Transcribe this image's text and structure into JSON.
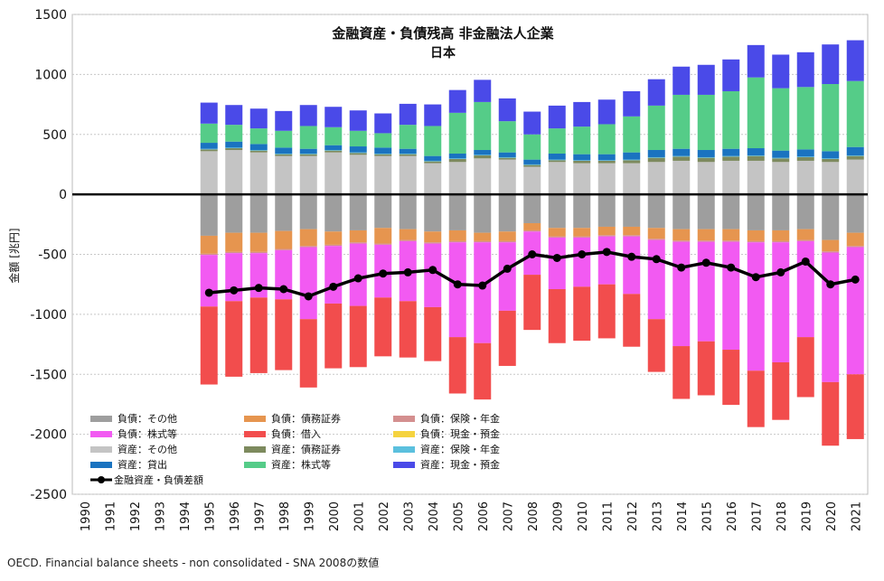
{
  "chart_data": {
    "type": "bar",
    "title": "金融資産・負債残高 非金融法人企業",
    "subtitle": "日本",
    "ylabel": "金額 [兆円]",
    "xlabel": "",
    "ylim": [
      -2500,
      1500
    ],
    "yticks": [
      1500,
      1000,
      500,
      0,
      -500,
      -1000,
      -1500,
      -2000,
      -2500
    ],
    "grid": true,
    "legend_position": "bottom-left",
    "categories": [
      "1990",
      "1991",
      "1992",
      "1993",
      "1994",
      "1995",
      "1996",
      "1997",
      "1998",
      "1999",
      "2000",
      "2001",
      "2002",
      "2003",
      "2004",
      "2005",
      "2006",
      "2007",
      "2008",
      "2009",
      "2010",
      "2011",
      "2012",
      "2013",
      "2014",
      "2015",
      "2016",
      "2017",
      "2018",
      "2019",
      "2020",
      "2021"
    ],
    "series": [
      {
        "name": "負債：その他",
        "color": "#9e9e9e",
        "stack": "liability",
        "values": [
          null,
          null,
          null,
          null,
          null,
          -345,
          -320,
          -320,
          -305,
          -290,
          -310,
          -300,
          -280,
          -290,
          -310,
          -300,
          -320,
          -310,
          -240,
          -280,
          -280,
          -270,
          -270,
          -280,
          -290,
          -290,
          -290,
          -300,
          -300,
          -290,
          -380,
          -320
        ]
      },
      {
        "name": "負債：債務証券",
        "color": "#e6954f",
        "stack": "liability",
        "values": [
          null,
          null,
          null,
          null,
          null,
          -150,
          -160,
          -160,
          -150,
          -140,
          -110,
          -100,
          -130,
          -90,
          -90,
          -90,
          -70,
          -80,
          -60,
          -70,
          -70,
          -70,
          -70,
          -90,
          -95,
          -95,
          -95,
          -90,
          -90,
          -90,
          -95,
          -110
        ]
      },
      {
        "name": "負債：保険・年金",
        "color": "#d48f8f",
        "stack": "liability",
        "values": [
          null,
          null,
          null,
          null,
          null,
          -10,
          -10,
          -10,
          -10,
          -10,
          -10,
          -10,
          -10,
          -10,
          -10,
          -10,
          -10,
          -10,
          -10,
          -10,
          -10,
          -10,
          -10,
          -10,
          -10,
          -10,
          -10,
          -10,
          -10,
          -10,
          -10,
          -10
        ]
      },
      {
        "name": "負債：株式等",
        "color": "#f25af2",
        "stack": "liability",
        "values": [
          null,
          null,
          null,
          null,
          null,
          -430,
          -400,
          -370,
          -410,
          -600,
          -480,
          -520,
          -440,
          -500,
          -530,
          -790,
          -840,
          -570,
          -360,
          -430,
          -410,
          -400,
          -480,
          -660,
          -870,
          -830,
          -900,
          -1070,
          -1000,
          -800,
          -1080,
          -1060
        ]
      },
      {
        "name": "負債：借入",
        "color": "#f24d4d",
        "stack": "liability",
        "values": [
          null,
          null,
          null,
          null,
          null,
          -650,
          -630,
          -630,
          -590,
          -570,
          -540,
          -510,
          -490,
          -470,
          -450,
          -470,
          -470,
          -460,
          -460,
          -450,
          -450,
          -450,
          -440,
          -440,
          -440,
          -450,
          -460,
          -470,
          -480,
          -500,
          -530,
          -540
        ]
      },
      {
        "name": "負債：現金・預金",
        "color": "#f5d33f",
        "stack": "liability",
        "values": [
          null,
          null,
          null,
          null,
          null,
          0,
          0,
          0,
          0,
          0,
          0,
          0,
          0,
          0,
          0,
          0,
          0,
          0,
          0,
          0,
          0,
          0,
          0,
          0,
          0,
          0,
          0,
          0,
          0,
          0,
          0,
          0
        ]
      },
      {
        "name": "資産：その他",
        "color": "#c4c4c4",
        "stack": "asset",
        "values": [
          null,
          null,
          null,
          null,
          null,
          360,
          370,
          350,
          320,
          320,
          350,
          330,
          320,
          320,
          260,
          270,
          300,
          290,
          230,
          270,
          260,
          260,
          260,
          270,
          280,
          270,
          280,
          280,
          270,
          280,
          270,
          290
        ]
      },
      {
        "name": "資産：債務証券",
        "color": "#7d8a5e",
        "stack": "asset",
        "values": [
          null,
          null,
          null,
          null,
          null,
          15,
          15,
          15,
          15,
          15,
          15,
          15,
          15,
          15,
          15,
          25,
          25,
          15,
          15,
          15,
          20,
          20,
          25,
          35,
          35,
          35,
          35,
          40,
          30,
          30,
          25,
          30
        ]
      },
      {
        "name": "資産：保険・年金",
        "color": "#5bc0de",
        "stack": "asset",
        "values": [
          null,
          null,
          null,
          null,
          null,
          5,
          5,
          5,
          5,
          5,
          5,
          5,
          5,
          5,
          5,
          5,
          5,
          5,
          5,
          5,
          5,
          5,
          5,
          5,
          5,
          5,
          5,
          5,
          5,
          5,
          5,
          5
        ]
      },
      {
        "name": "資産：貸出",
        "color": "#1a73c0",
        "stack": "asset",
        "values": [
          null,
          null,
          null,
          null,
          null,
          50,
          50,
          50,
          50,
          40,
          40,
          50,
          50,
          40,
          40,
          40,
          40,
          40,
          40,
          50,
          50,
          50,
          60,
          60,
          60,
          60,
          60,
          60,
          60,
          60,
          60,
          70
        ]
      },
      {
        "name": "資産：株式等",
        "color": "#55cc88",
        "stack": "asset",
        "values": [
          null,
          null,
          null,
          null,
          null,
          160,
          140,
          130,
          140,
          190,
          150,
          130,
          120,
          200,
          250,
          340,
          400,
          260,
          210,
          210,
          230,
          250,
          300,
          370,
          450,
          460,
          480,
          590,
          520,
          520,
          560,
          550
        ]
      },
      {
        "name": "資産：現金・預金",
        "color": "#4a4ae8",
        "stack": "asset",
        "values": [
          null,
          null,
          null,
          null,
          null,
          175,
          165,
          165,
          165,
          175,
          170,
          170,
          165,
          175,
          180,
          190,
          185,
          190,
          190,
          190,
          205,
          205,
          210,
          220,
          235,
          250,
          265,
          270,
          280,
          290,
          330,
          340
        ]
      }
    ],
    "net_series": {
      "name": "金融資産・負債差額",
      "color": "#000000",
      "values": [
        null,
        null,
        null,
        null,
        null,
        -820,
        -800,
        -780,
        -790,
        -850,
        -770,
        -700,
        -660,
        -650,
        -630,
        -750,
        -760,
        -620,
        -500,
        -530,
        -500,
        -480,
        -520,
        -540,
        -610,
        -570,
        -610,
        -690,
        -650,
        -560,
        -750,
        -710
      ]
    },
    "legend": [
      [
        "負債：その他",
        "負債：債務証券",
        "負債：保険・年金"
      ],
      [
        "負債：株式等",
        "負債：借入",
        "負債：現金・預金"
      ],
      [
        "資産：その他",
        "資産：債務証券",
        "資産：保険・年金"
      ],
      [
        "資産：貸出",
        "資産：株式等",
        "資産：現金・預金"
      ],
      [
        "金融資産・負債差額"
      ]
    ]
  },
  "source_note": "OECD. Financial balance sheets - non consolidated - SNA 2008の数値"
}
